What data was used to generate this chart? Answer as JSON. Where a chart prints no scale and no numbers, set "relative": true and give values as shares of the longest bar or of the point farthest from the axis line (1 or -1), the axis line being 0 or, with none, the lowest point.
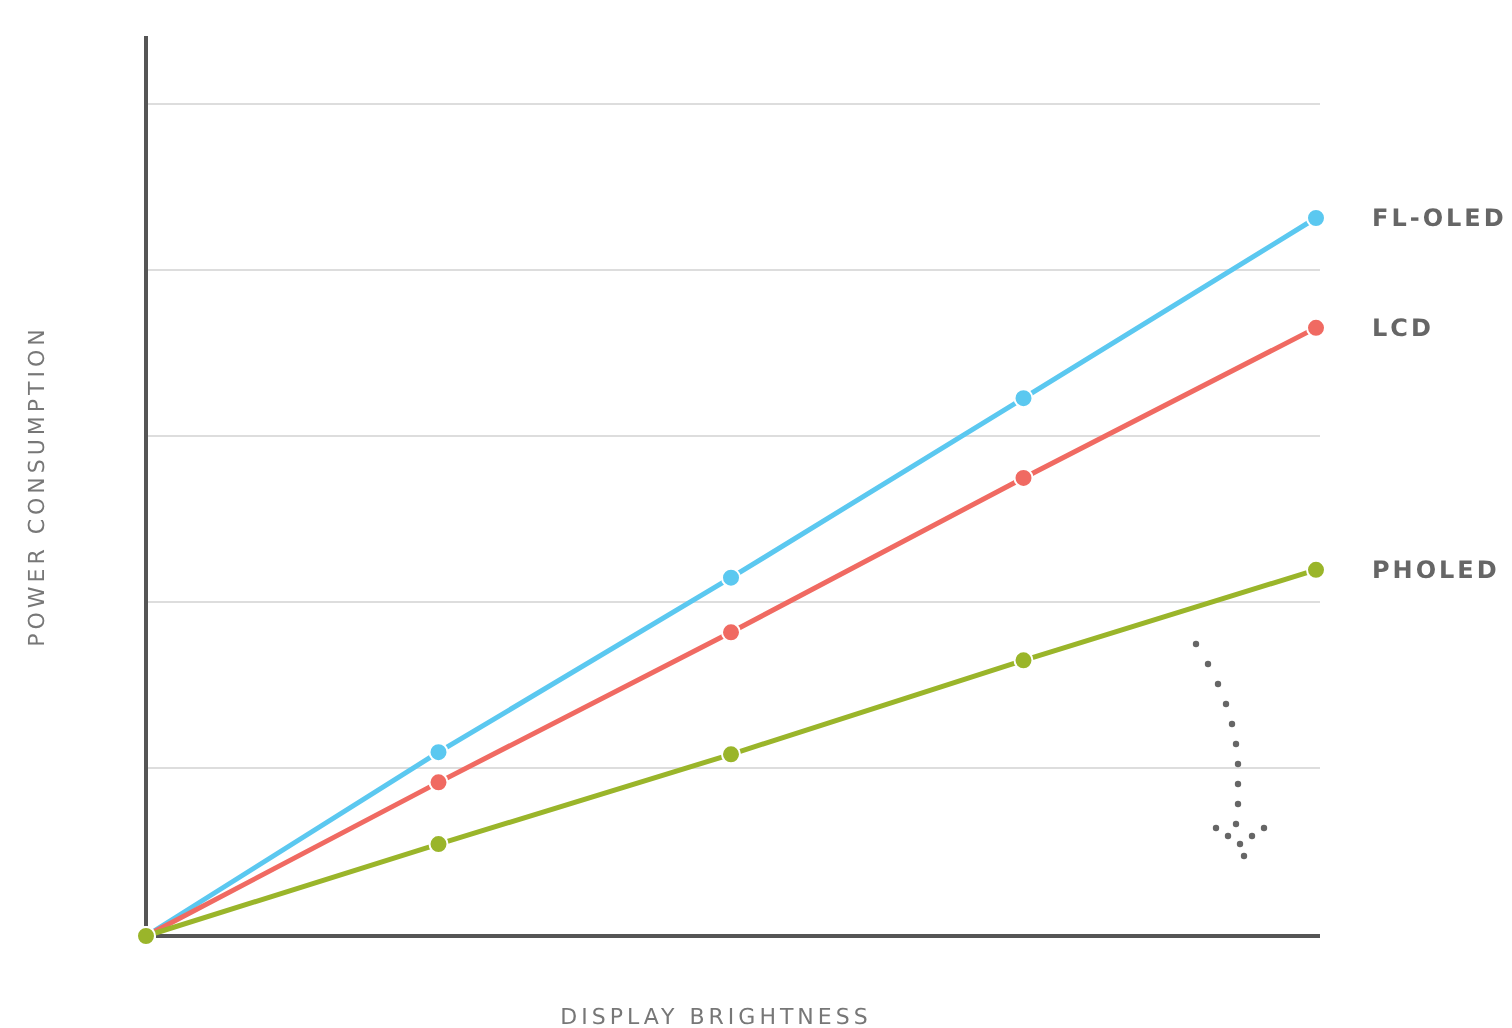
{
  "chart_data": {
    "type": "line",
    "relative": true,
    "xlabel": "DISPLAY BRIGHTNESS",
    "ylabel": "POWER CONSUMPTION",
    "categories": [
      null,
      null,
      null,
      null,
      null
    ],
    "grid": "y",
    "marker": "circle",
    "series": [
      {
        "name": "FL-OLED",
        "color": "#5bc8f0",
        "values": [
          0,
          0.256,
          0.499,
          0.749,
          1
        ]
      },
      {
        "name": "LCD",
        "color": "#f06a62",
        "values": [
          0,
          0.214,
          0.423,
          0.638,
          0.847
        ]
      },
      {
        "name": "PHOLED",
        "color": "#9ab52a",
        "values": [
          0,
          0.128,
          0.253,
          0.384,
          0.51
        ]
      }
    ]
  }
}
